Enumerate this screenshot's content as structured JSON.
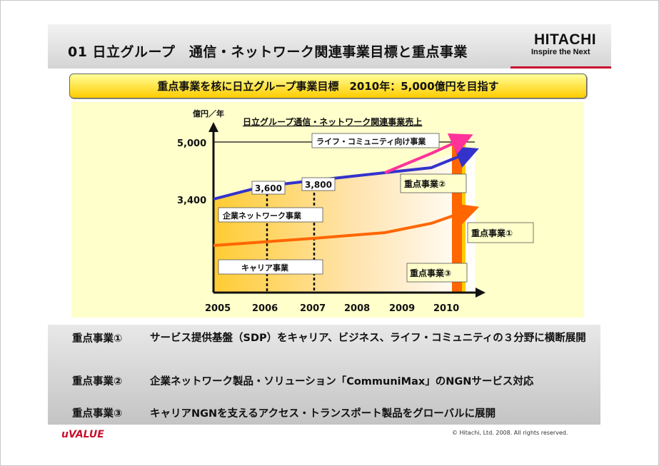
{
  "header": {
    "title": "01 日立グループ　通信・ネットワーク関連事業目標と重点事業",
    "logo_main": "HITACHI",
    "logo_sub": "Inspire the Next"
  },
  "banner": {
    "text": "重点事業を核に日立グループ事業目標　2010年：5,000億円を目指す"
  },
  "chart_data": {
    "type": "line",
    "title": "日立グループ通信・ネットワーク関連事業売上",
    "ylabel": "億円／年",
    "categories": [
      "2005",
      "2006",
      "2007",
      "2008",
      "2009",
      "2010"
    ],
    "y_tick_labels": [
      "5,000",
      "3,400"
    ],
    "value_labels": [
      {
        "year": "2006",
        "text": "3,600",
        "value": 3600
      },
      {
        "year": "2007",
        "text": "3,800",
        "value": 3800
      }
    ],
    "series": [
      {
        "name": "企業ネットワーク事業",
        "color": "#3333cc",
        "values": [
          3400,
          3600,
          3800,
          4000,
          4350,
          4700
        ]
      },
      {
        "name": "キャリア事業",
        "color": "#ff6600",
        "values": [
          2550,
          2600,
          2650,
          2700,
          2900,
          3200
        ]
      },
      {
        "name": "ライフ・コミュニティ向け事業",
        "color": "#ff3399",
        "values": [
          null,
          null,
          null,
          4000,
          4550,
          5100
        ]
      }
    ],
    "segment_labels": {
      "enterprise": "企業ネットワーク事業",
      "carrier": "キャリア事業",
      "life": "ライフ・コミュニティ向け事業"
    },
    "focus_labels": {
      "focus1": "重点事業①",
      "focus2": "重点事業②",
      "focus3": "重点事業③"
    },
    "colors": {
      "background": "#ffffcc",
      "fill": "#ffcc33",
      "bar": "#ff6600"
    }
  },
  "focus_points": [
    {
      "label": "重点事業①",
      "text": "サービス提供基盤（SDP）をキャリア、ビジネス、ライフ・コミュニティの３分野に横断展開"
    },
    {
      "label": "重点事業②",
      "text": "企業ネットワーク製品・ソリューション「CommuniMax」のNGNサービス対応"
    },
    {
      "label": "重点事業③",
      "text": "キャリアNGNを支えるアクセス・トランスポート製品をグローバルに展開"
    }
  ],
  "footer": {
    "brand": "uVALUE",
    "copyright": "© Hitachi, Ltd. 2008. All rights reserved."
  }
}
